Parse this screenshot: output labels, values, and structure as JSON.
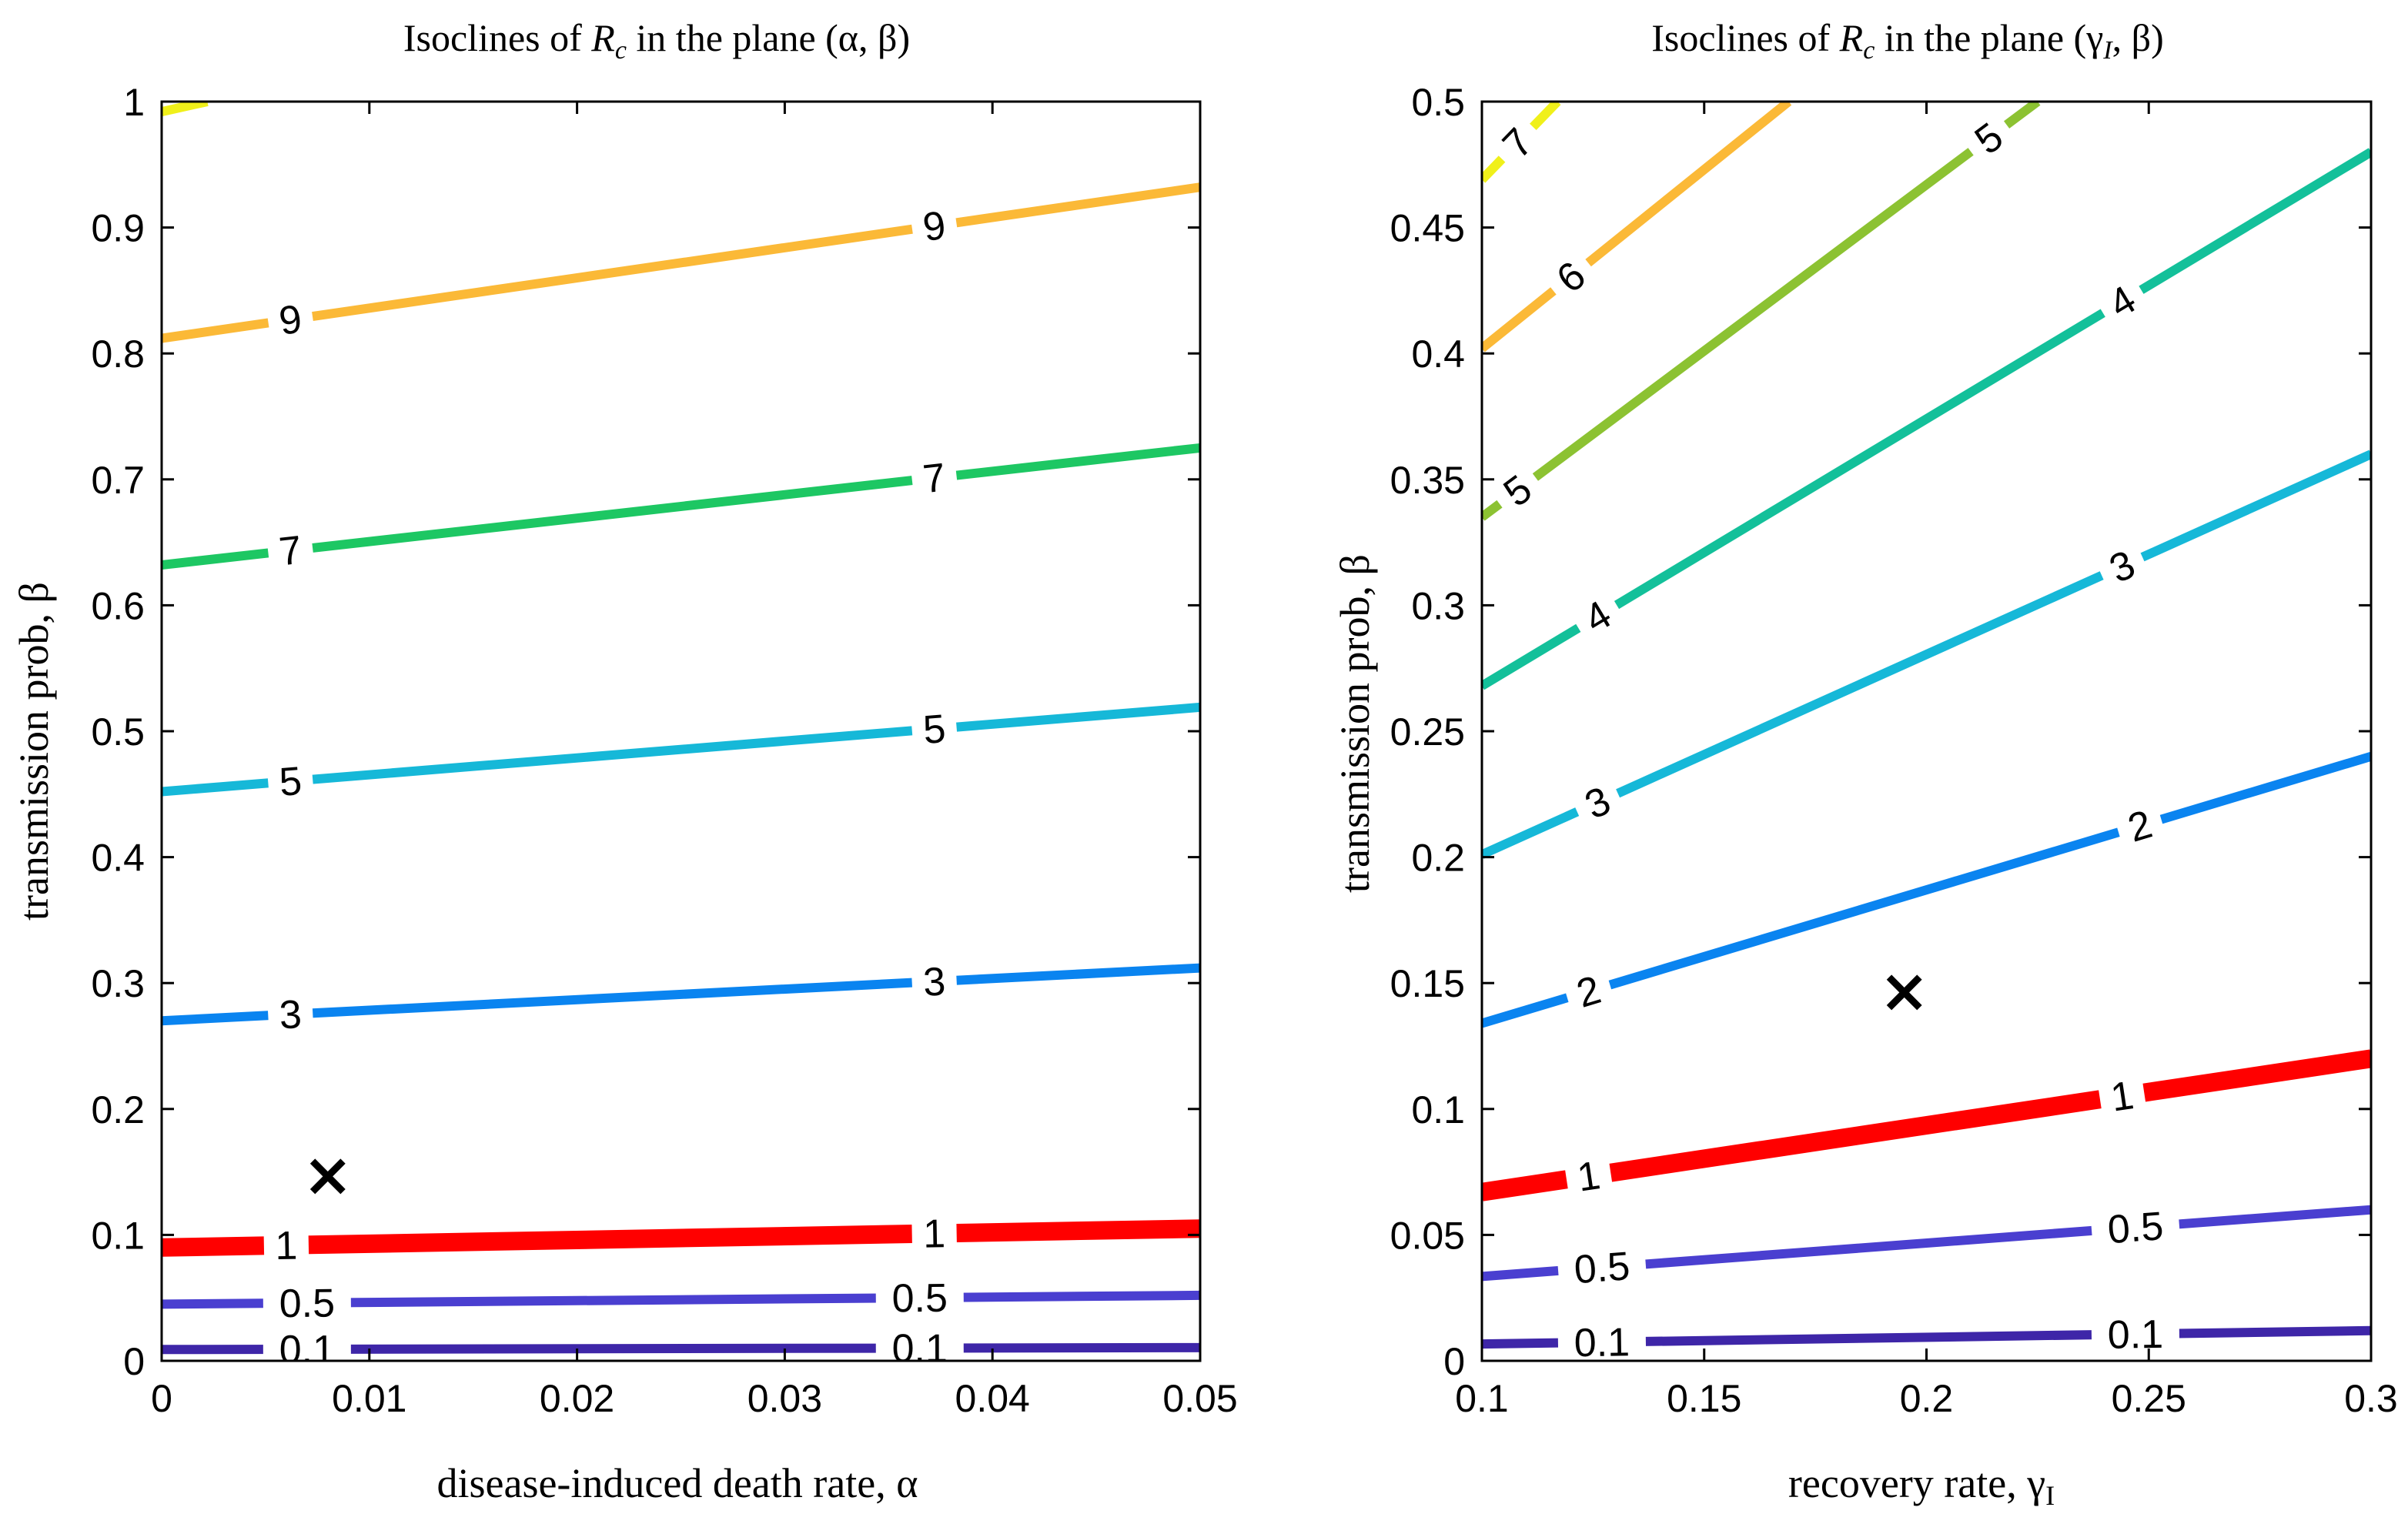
{
  "chart_data": [
    {
      "type": "contour",
      "title": "Isoclines of R_c in the plane (α, β)",
      "title_parts": {
        "prefix": "Isoclines of ",
        "symbol": "R",
        "subscript": "c",
        "suffix": " in the plane (α, β)"
      },
      "xlabel": "disease-induced death rate, α",
      "ylabel": "transmission prob, β",
      "xlim": [
        0,
        0.05
      ],
      "ylim": [
        0,
        1
      ],
      "xticks": [
        0,
        0.01,
        0.02,
        0.03,
        0.04,
        0.05
      ],
      "xtick_labels": [
        "0",
        "0.01",
        "0.02",
        "0.03",
        "0.04",
        "0.05"
      ],
      "yticks": [
        0,
        0.1,
        0.2,
        0.3,
        0.4,
        0.5,
        0.6,
        0.7,
        0.8,
        0.9,
        1
      ],
      "ytick_labels": [
        "0",
        "0.1",
        "0.2",
        "0.3",
        "0.4",
        "0.5",
        "0.6",
        "0.7",
        "0.8",
        "0.9",
        "1"
      ],
      "marker": {
        "symbol": "×",
        "x": 0.008,
        "y": 0.148
      },
      "series": [
        {
          "name": "0.1",
          "color": "#3e26a8",
          "x": [
            0,
            0.05
          ],
          "y": [
            0.009,
            0.0105
          ],
          "label_x": [
            0.007,
            0.0365
          ]
        },
        {
          "name": "0.5",
          "color": "#4a3fd0",
          "x": [
            0,
            0.05
          ],
          "y": [
            0.045,
            0.052
          ],
          "label_x": [
            0.007,
            0.0365
          ]
        },
        {
          "name": "1",
          "color": "#ff0000",
          "x": [
            0,
            0.05
          ],
          "y": [
            0.09,
            0.105
          ],
          "label_x": [
            0.006,
            0.0372
          ],
          "bold": true
        },
        {
          "name": "3",
          "color": "#0a84f0",
          "x": [
            0,
            0.05
          ],
          "y": [
            0.27,
            0.312
          ],
          "label_x": [
            0.0062,
            0.0372
          ]
        },
        {
          "name": "5",
          "color": "#16b8d8",
          "x": [
            0,
            0.05
          ],
          "y": [
            0.452,
            0.519
          ],
          "label_x": [
            0.0062,
            0.0372
          ]
        },
        {
          "name": "7",
          "color": "#1dc763",
          "x": [
            0,
            0.05
          ],
          "y": [
            0.632,
            0.725
          ],
          "label_x": [
            0.0062,
            0.0372
          ]
        },
        {
          "name": "9",
          "color": "#fbb937",
          "x": [
            0,
            0.05
          ],
          "y": [
            0.812,
            0.932
          ],
          "label_x": [
            0.0062,
            0.0372
          ]
        },
        {
          "name": "",
          "color": "#f0f01a",
          "x": [
            0,
            0.0022
          ],
          "y": [
            0.992,
            1.0
          ],
          "label_x": []
        }
      ]
    },
    {
      "type": "contour",
      "title": "Isoclines of R_c in the plane (γ_I, β)",
      "title_parts": {
        "prefix": "Isoclines of ",
        "symbol": "R",
        "subscript": "c",
        "suffix": " in the plane (γ",
        "suffix_sub": "I",
        "suffix_end": ", β)"
      },
      "xlabel": "recovery rate, γ_I",
      "xlabel_parts": {
        "prefix": "recovery rate, γ",
        "subscript": "I"
      },
      "ylabel": "transmission prob, β",
      "xlim": [
        0.1,
        0.3
      ],
      "ylim": [
        0,
        0.5
      ],
      "xticks": [
        0.1,
        0.15,
        0.2,
        0.25,
        0.3
      ],
      "xtick_labels": [
        "0.1",
        "0.15",
        "0.2",
        "0.25",
        "0.3"
      ],
      "yticks": [
        0,
        0.05,
        0.1,
        0.15,
        0.2,
        0.25,
        0.3,
        0.35,
        0.4,
        0.45,
        0.5
      ],
      "ytick_labels": [
        "0",
        "0.05",
        "0.1",
        "0.15",
        "0.2",
        "0.25",
        "0.3",
        "0.35",
        "0.4",
        "0.45",
        "0.5"
      ],
      "marker": {
        "symbol": "×",
        "x": 0.195,
        "y": 0.147
      },
      "series": [
        {
          "name": "0.1",
          "color": "#3e26a8",
          "x": [
            0.1,
            0.3
          ],
          "y": [
            0.0067,
            0.012
          ],
          "label_x": [
            0.127,
            0.247
          ]
        },
        {
          "name": "0.5",
          "color": "#4a3fd0",
          "x": [
            0.1,
            0.3
          ],
          "y": [
            0.0335,
            0.06
          ],
          "label_x": [
            0.127,
            0.247
          ]
        },
        {
          "name": "1",
          "color": "#ff0000",
          "x": [
            0.1,
            0.3
          ],
          "y": [
            0.067,
            0.12
          ],
          "label_x": [
            0.124,
            0.244
          ],
          "bold": true
        },
        {
          "name": "2",
          "color": "#0a84f0",
          "x": [
            0.1,
            0.3
          ],
          "y": [
            0.134,
            0.24
          ],
          "label_x": [
            0.124,
            0.248
          ]
        },
        {
          "name": "3",
          "color": "#16b8d8",
          "x": [
            0.1,
            0.3
          ],
          "y": [
            0.201,
            0.36
          ],
          "label_x": [
            0.126,
            0.244
          ]
        },
        {
          "name": "4",
          "color": "#13c09a",
          "x": [
            0.1,
            0.3
          ],
          "y": [
            0.268,
            0.48
          ],
          "label_x": [
            0.126,
            0.244
          ]
        },
        {
          "name": "5",
          "color": "#8cc232",
          "x": [
            0.1,
            0.225
          ],
          "y": [
            0.335,
            0.5
          ],
          "label_x": [
            0.108,
            0.214
          ]
        },
        {
          "name": "6",
          "color": "#fbb937",
          "x": [
            0.1,
            0.169
          ],
          "y": [
            0.402,
            0.5
          ],
          "label_x": [
            0.12
          ]
        },
        {
          "name": "7",
          "color": "#f0f01a",
          "x": [
            0.1,
            0.117
          ],
          "y": [
            0.469,
            0.5
          ],
          "label_x": [
            0.108
          ]
        }
      ]
    }
  ]
}
